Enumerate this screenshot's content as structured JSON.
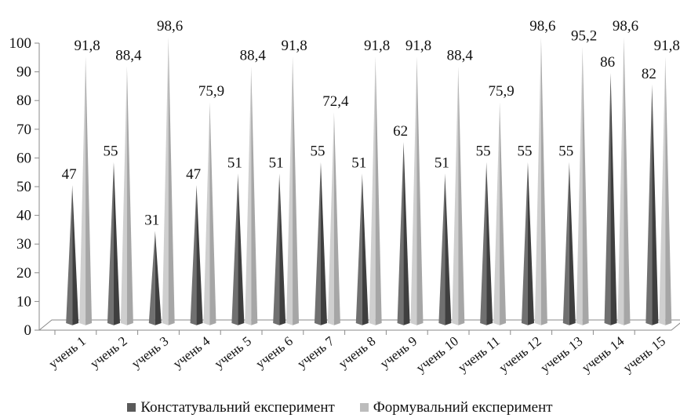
{
  "chart_data": {
    "type": "bar",
    "categories": [
      "учень 1",
      "учень 2",
      "учень 3",
      "учень 4",
      "учень 5",
      "учень 6",
      "учень 7",
      "учень 8",
      "учень 9",
      "учень 10",
      "учень 11",
      "учень 12",
      "учень 13",
      "учень 14",
      "учень 15"
    ],
    "series": [
      {
        "name": "Констатувальний експеримент",
        "color": "#5a5a5a",
        "values": [
          47,
          55,
          31,
          47,
          51,
          51,
          55,
          51,
          62,
          51,
          55,
          55,
          55,
          86,
          82
        ],
        "labels": [
          "47",
          "55",
          "31",
          "47",
          "51",
          "51",
          "55",
          "51",
          "62",
          "51",
          "55",
          "55",
          "55",
          "86",
          "82"
        ]
      },
      {
        "name": "Формувальний експеримент",
        "color": "#bcbcbc",
        "values": [
          91.8,
          88.4,
          98.6,
          75.9,
          88.4,
          91.8,
          72.4,
          91.8,
          91.8,
          88.4,
          75.9,
          98.6,
          95.2,
          98.6,
          91.8
        ],
        "labels": [
          "91,8",
          "88,4",
          "98,6",
          "75,9",
          "88,4",
          "91,8",
          "72,4",
          "91,8",
          "91,8",
          "88,4",
          "75,9",
          "98,6",
          "95,2",
          "98,6",
          "91,8"
        ]
      }
    ],
    "yticks": [
      "0",
      "10",
      "20",
      "30",
      "40",
      "50",
      "60",
      "70",
      "80",
      "90",
      "100"
    ],
    "ylim": [
      0,
      100
    ],
    "legend_position": "bottom",
    "grid": false
  }
}
